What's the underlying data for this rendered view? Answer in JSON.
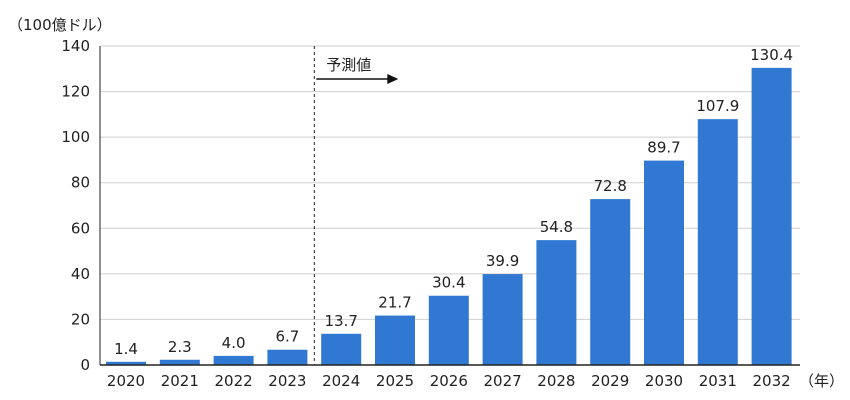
{
  "chart_data": {
    "type": "bar",
    "title": "",
    "xlabel": "",
    "ylabel": "",
    "y_unit_label": "（100億ドル）",
    "x_unit_label": "（年）",
    "categories": [
      "2020",
      "2021",
      "2022",
      "2023",
      "2024",
      "2025",
      "2026",
      "2027",
      "2028",
      "2029",
      "2030",
      "2031",
      "2032"
    ],
    "values": [
      1.4,
      2.3,
      4.0,
      6.7,
      13.7,
      21.7,
      30.4,
      39.9,
      54.8,
      72.8,
      89.7,
      107.9,
      130.4
    ],
    "value_labels": [
      "1.4",
      "2.3",
      "4.0",
      "6.7",
      "13.7",
      "21.7",
      "30.4",
      "39.9",
      "54.8",
      "72.8",
      "89.7",
      "107.9",
      "130.4"
    ],
    "ylim": [
      0,
      140
    ],
    "yticks": [
      "0",
      "20",
      "40",
      "60",
      "80",
      "100",
      "120",
      "140"
    ],
    "grid": true,
    "bar_color": "#3178d2",
    "grid_color": "#cfcfcf",
    "axis_color": "#222222",
    "forecast": {
      "label": "予測値",
      "divider_after_category": "2023",
      "arrow": "right"
    }
  }
}
